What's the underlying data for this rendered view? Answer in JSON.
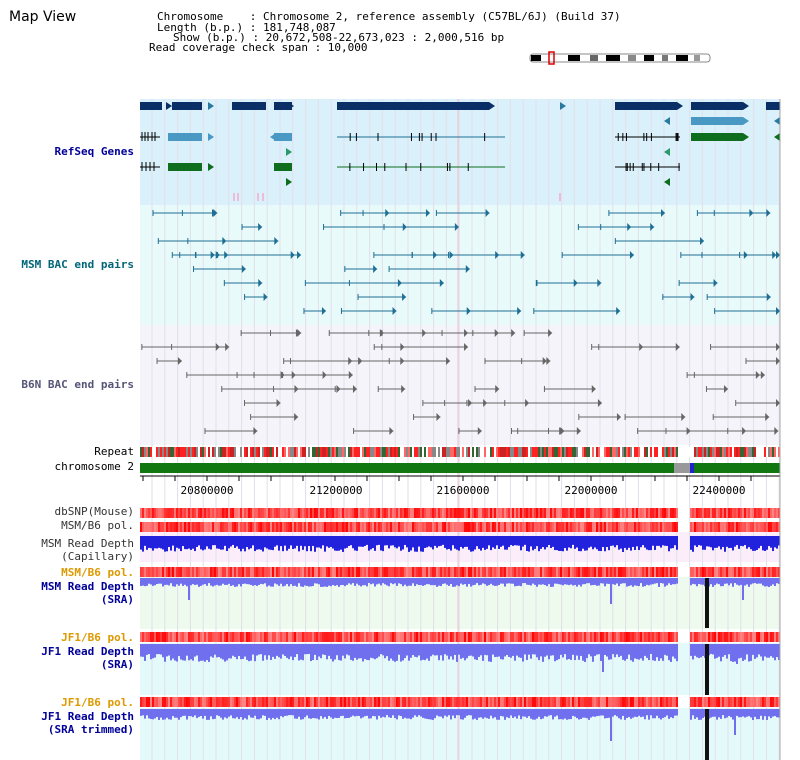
{
  "window": {
    "title": "Map View"
  },
  "header": {
    "chromosome_line": "Chromosome    : Chromosome 2, reference assembly (C57BL/6J) (Build 37)",
    "length_line": "Length (b.p.) : 181,748,087",
    "show_line": "Show (b.p.) : 20,672,508-22,673,023 : 2,000,516 bp",
    "coverage_line": "Read coverage check span : 10,000"
  },
  "tracks": {
    "refseq": "RefSeq Genes",
    "msm_bac": "MSM BAC end pairs",
    "b6n_bac": "B6N BAC end pairs",
    "repeat": "Repeat",
    "chromosome": "chromosome 2",
    "dbsnp": "dbSNP(Mouse)",
    "msm_b6_pol": "MSM/B6 pol.",
    "msm_depth_cap_1": "MSM Read Depth",
    "msm_depth_cap_2": "(Capillary)",
    "msm_b6_pol_sra": "MSM/B6 pol.",
    "msm_depth_sra_1": "MSM Read Depth",
    "msm_depth_sra_2": "(SRA)",
    "jf1_b6_pol": "JF1/B6 pol.",
    "jf1_depth_sra_1": "JF1 Read Depth",
    "jf1_depth_sra_2": "(SRA)",
    "jf1_b6_pol_trim": "JF1/B6 pol.",
    "jf1_depth_trim_1": "JF1 Read Depth",
    "jf1_depth_trim_2": "(SRA trimmed)"
  },
  "ruler": {
    "labels": [
      "20800000",
      "21200000",
      "21600000",
      "22000000",
      "22400000"
    ]
  },
  "colors": {
    "refseq_bg": "#daf0fa",
    "msm_bg": "#e8fafa",
    "b6n_bg": "#f4f4fa",
    "gene_dark": "#0a2f66",
    "gene_mid": "#4a98c4",
    "gene_green": "#0f6e1e",
    "msm_line": "#1f6f94",
    "b6n_line": "#666666",
    "chrom_green": "#117711",
    "depth_blue": "#2222dd",
    "depth_light": "#7070ee",
    "pol_red": "#ee3333",
    "label_blue": "#000099",
    "label_orange": "#dd9900",
    "label_teal": "#006677"
  }
}
